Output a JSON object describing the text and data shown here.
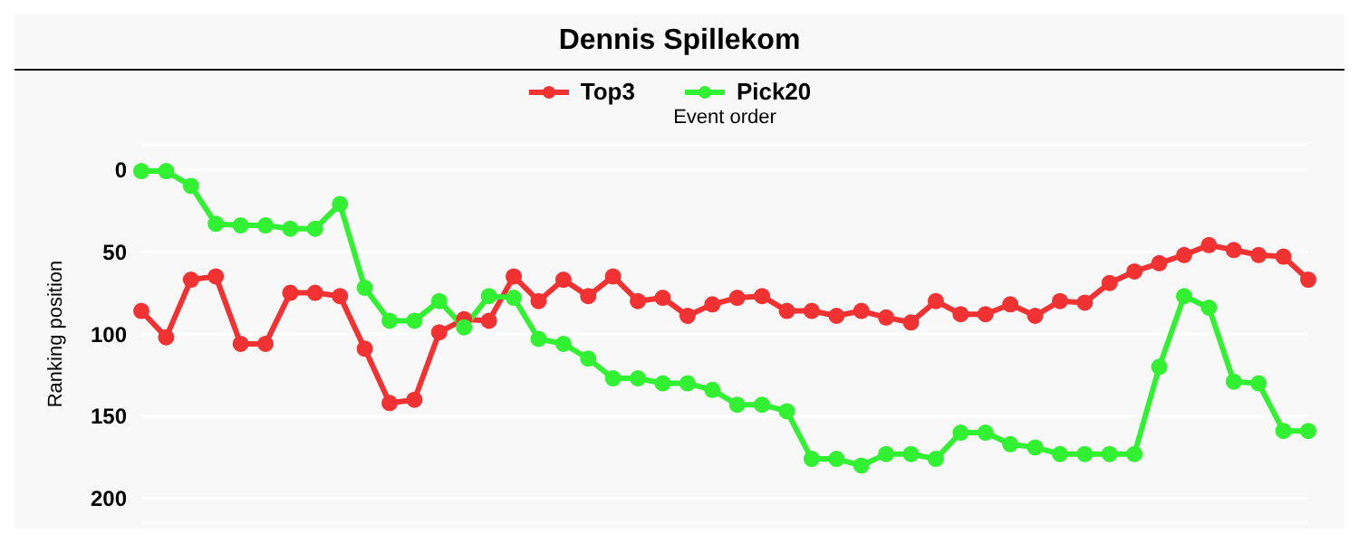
{
  "chart_data": {
    "type": "line",
    "title": "Dennis Spillekom",
    "xlabel": "Event order",
    "ylabel": "Ranking position",
    "categories": [
      null,
      null,
      null,
      null,
      null,
      null,
      null,
      null,
      null,
      null,
      null,
      null,
      null,
      null,
      null,
      null,
      null,
      null,
      null,
      null,
      null,
      null,
      null,
      null,
      null,
      null,
      null,
      null,
      null,
      null,
      null,
      null,
      null,
      null,
      null,
      null,
      null,
      null,
      null,
      null,
      null,
      null,
      null,
      null,
      null,
      null,
      null,
      null
    ],
    "series": [
      {
        "name": "Top3",
        "color": "#f03232",
        "values": [
          86,
          102,
          67,
          65,
          106,
          106,
          75,
          75,
          77,
          109,
          142,
          140,
          99,
          91,
          92,
          65,
          80,
          67,
          77,
          65,
          80,
          78,
          89,
          82,
          78,
          77,
          86,
          86,
          89,
          86,
          90,
          93,
          80,
          88,
          88,
          82,
          89,
          80,
          81,
          69,
          62,
          57,
          52,
          46,
          49,
          52,
          53,
          67
        ]
      },
      {
        "name": "Pick20",
        "color": "#32f032",
        "values": [
          1,
          1,
          10,
          33,
          34,
          34,
          36,
          36,
          21,
          72,
          92,
          92,
          80,
          96,
          77,
          78,
          103,
          106,
          115,
          127,
          127,
          130,
          130,
          134,
          143,
          143,
          147,
          176,
          176,
          180,
          173,
          173,
          176,
          160,
          160,
          167,
          169,
          173,
          173,
          173,
          173,
          120,
          77,
          84,
          129,
          130,
          159,
          159
        ]
      }
    ],
    "ylim": [
      215,
      -15
    ],
    "yticks": [
      0,
      50,
      100,
      150,
      200
    ],
    "grid": "y",
    "legend": "top",
    "tick_labels": "y",
    "marker": "circle",
    "line_style": "solid"
  }
}
